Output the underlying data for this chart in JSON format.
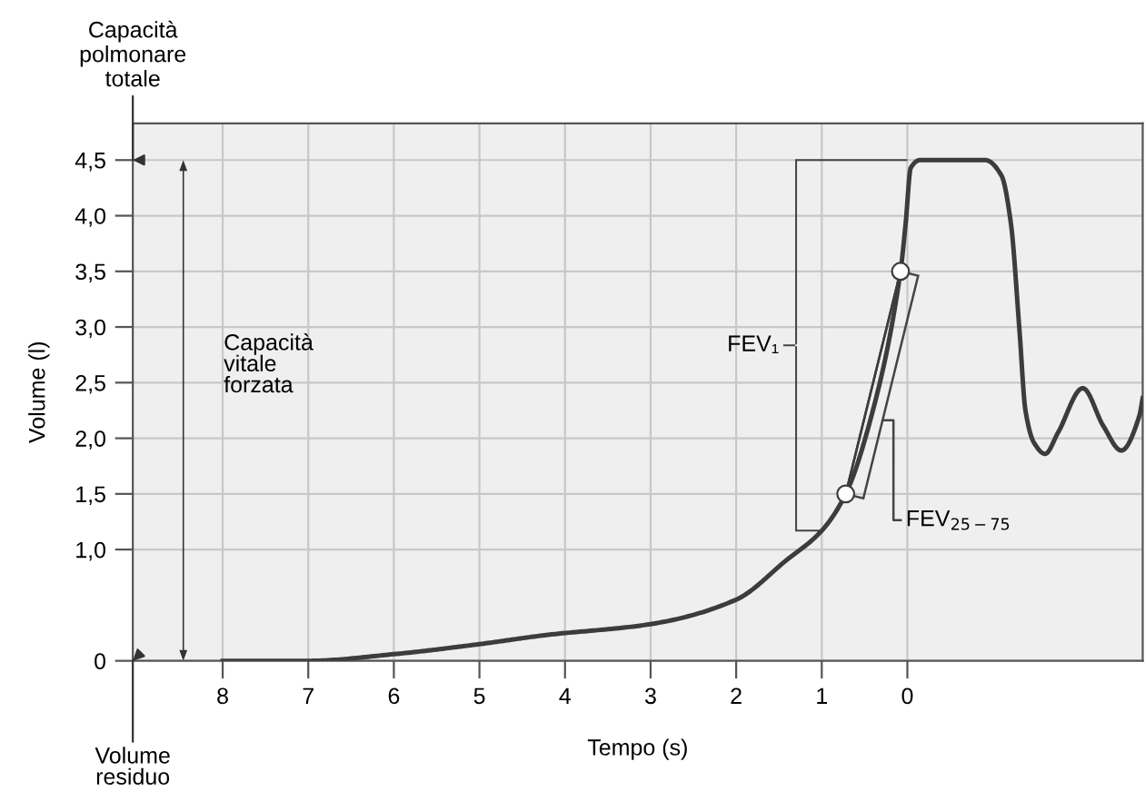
{
  "chart_data": {
    "type": "line",
    "xlabel": "Tempo (s)",
    "ylabel": "Volume (l)",
    "xlim": [
      9.05,
      -2.75
    ],
    "xticks": [
      8,
      7,
      6,
      5,
      4,
      3,
      2,
      1,
      0
    ],
    "ylim": [
      0,
      4.83
    ],
    "yticks": [
      0,
      {
        "value": 1.0,
        "label": "1,0"
      },
      {
        "value": 1.5,
        "label": "1,5"
      },
      {
        "value": 2.0,
        "label": "2,0"
      },
      {
        "value": 2.5,
        "label": "2,5"
      },
      {
        "value": 3.0,
        "label": "3,0"
      },
      {
        "value": 3.5,
        "label": "3,5"
      },
      {
        "value": 4.0,
        "label": "4,0"
      },
      {
        "value": 4.5,
        "label": "4,5"
      }
    ],
    "grid": true,
    "legend": false,
    "series": [
      {
        "color": "#3c3c3c",
        "x": [
          8,
          7,
          6,
          5,
          4.24,
          3.0,
          2.0,
          1.42,
          1.0,
          0.72,
          0.42,
          0.08,
          0.02,
          -0.04,
          -0.15,
          -0.91,
          -1.1,
          -1.21,
          -1.31,
          -1.38,
          -1.48,
          -1.61,
          -1.76,
          -2.05,
          -2.29,
          -2.5,
          -2.71,
          -2.75
        ],
        "values": [
          0,
          0,
          0.06,
          0.15,
          0.23,
          0.33,
          0.55,
          0.9,
          1.17,
          1.5,
          2.2,
          3.5,
          3.93,
          4.43,
          4.5,
          4.5,
          4.36,
          3.93,
          2.97,
          2.25,
          1.96,
          1.86,
          2.05,
          2.45,
          2.11,
          1.89,
          2.2,
          2.36
        ]
      },
      {
        "color": "#3c3c3c",
        "x": [
          0.72,
          0.08
        ],
        "values": [
          1.5,
          3.5
        ]
      },
      {
        "type": "scatter",
        "color": "#ffffff",
        "marker": "circle",
        "x": [
          0.72,
          0.08
        ],
        "values": [
          1.5,
          3.5
        ]
      }
    ],
    "annotations": [
      "Capacità\npolmonare\ntotale",
      "Capacità\nvitale\nforzata",
      "Volume\nresiduo",
      "FEV₁",
      "FEV$_{25−75}$"
    ]
  }
}
